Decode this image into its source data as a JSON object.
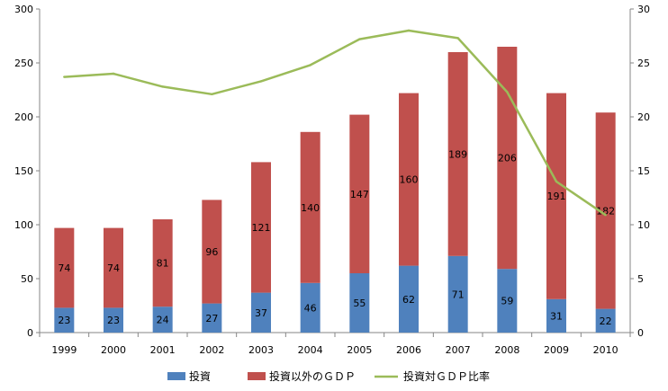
{
  "chart_data": {
    "type": "bar",
    "stacked": true,
    "categories": [
      "1999",
      "2000",
      "2001",
      "2002",
      "2003",
      "2004",
      "2005",
      "2006",
      "2007",
      "2008",
      "2009",
      "2010"
    ],
    "series": [
      {
        "name": "投資",
        "type": "bar",
        "axis": "left",
        "color": "#4F81BD",
        "values": [
          23,
          23,
          24,
          27,
          37,
          46,
          55,
          62,
          71,
          59,
          31,
          22
        ]
      },
      {
        "name": "投資以外のＧＤＰ",
        "type": "bar",
        "axis": "left",
        "color": "#C0504D",
        "values": [
          74,
          74,
          81,
          96,
          121,
          140,
          147,
          160,
          189,
          206,
          191,
          182
        ]
      },
      {
        "name": "投資対ＧＤＰ比率",
        "type": "line",
        "axis": "right",
        "color": "#9BBB59",
        "values": [
          23.7,
          24.0,
          22.8,
          22.1,
          23.3,
          24.8,
          27.2,
          28.0,
          27.3,
          22.3,
          14.0,
          10.9
        ]
      }
    ],
    "ylim_left": [
      0,
      300
    ],
    "yticks_left": [
      0,
      50,
      100,
      150,
      200,
      250,
      300
    ],
    "ylim_right": [
      0,
      30
    ],
    "yticks_right": [
      0,
      5,
      10,
      15,
      20,
      25,
      30
    ],
    "grid": false,
    "legend_position": "bottom"
  }
}
